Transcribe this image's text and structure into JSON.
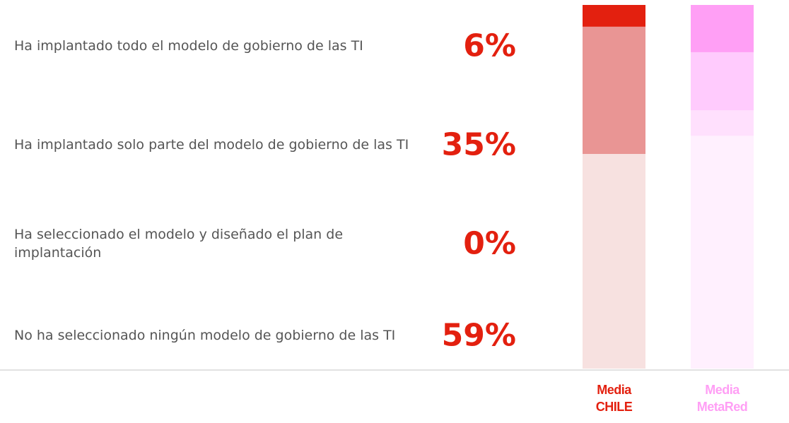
{
  "chart_data": {
    "type": "bar",
    "stacked": true,
    "categories": [
      "Media CHILE",
      "Media MetaRed"
    ],
    "category_colors": [
      "#e3200f",
      "#ff9ff5"
    ],
    "ylim": [
      0,
      100
    ],
    "series": [
      {
        "name": "Ha implantado todo el modelo de gobierno de las TI",
        "colors": [
          "#e3200f",
          "#ff9ff5"
        ],
        "values": [
          6,
          13
        ],
        "value_labels": [
          "6%",
          null
        ]
      },
      {
        "name": "Ha implantado solo parte del modelo de gobierno de las TI",
        "colors": [
          "#e99594",
          "#ffcbfd"
        ],
        "values": [
          35,
          16
        ],
        "value_labels": [
          "35%",
          null
        ]
      },
      {
        "name": "Ha seleccionado el modelo y diseñado el plan de implantación",
        "colors": [
          "#f2c4c3",
          "#ffe0fd"
        ],
        "values": [
          0,
          7
        ],
        "value_labels": [
          "0%",
          null
        ]
      },
      {
        "name": "No ha seleccionado ningún modelo de gobierno de las TI",
        "colors": [
          "#f7e1e0",
          "#fff0fe"
        ],
        "values": [
          59,
          64
        ],
        "value_labels": [
          "59%",
          null
        ]
      }
    ]
  }
}
